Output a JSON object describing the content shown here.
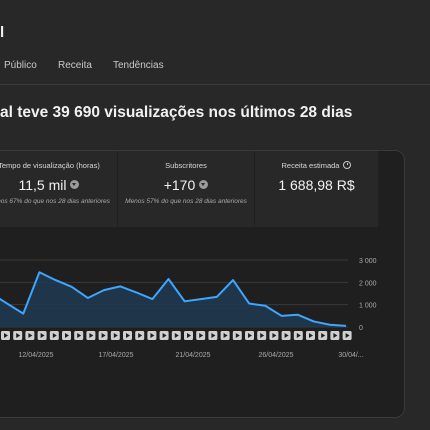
{
  "header": {
    "title_fragment": "l"
  },
  "tabs": [
    {
      "label": "Público"
    },
    {
      "label": "Receita"
    },
    {
      "label": "Tendências"
    }
  ],
  "headline": "al teve 39 690 visualizações nos últimos 28 dias",
  "metrics": [
    {
      "label": "Tempo de visualização (horas)",
      "value": "11,5 mil",
      "note": "Menos 67% do que nos 28 dias anteriores",
      "icon": "down-arrow-icon"
    },
    {
      "label": "Subscritores",
      "value": "+170",
      "note": "Menos 57% do que nos 28 dias anteriores",
      "icon": "down-arrow-icon"
    },
    {
      "label": "Receita estimada",
      "value": "1 688,98 R$",
      "note": "",
      "icon": "clock-icon"
    }
  ],
  "colors": {
    "line": "#3ea6ff",
    "fill": "#1e3a52",
    "background": "#282828",
    "card": "#1f1f1f"
  },
  "chart_data": {
    "type": "area",
    "x": [
      "09/04/2025",
      "10/04/2025",
      "11/04/2025",
      "12/04/2025",
      "13/04/2025",
      "14/04/2025",
      "15/04/2025",
      "16/04/2025",
      "17/04/2025",
      "18/04/2025",
      "19/04/2025",
      "20/04/2025",
      "21/04/2025",
      "22/04/2025",
      "23/04/2025",
      "24/04/2025",
      "25/04/2025",
      "26/04/2025",
      "27/04/2025",
      "28/04/2025",
      "29/04/2025",
      "30/04/2025",
      "01/05/2025"
    ],
    "values": [
      1500,
      1050,
      600,
      2450,
      2100,
      1800,
      1300,
      1650,
      1820,
      1550,
      1250,
      2150,
      1150,
      1250,
      1350,
      2100,
      1050,
      950,
      500,
      550,
      250,
      100,
      50
    ],
    "x_tick_labels": [
      "12/04/2025",
      "17/04/2025",
      "21/04/2025",
      "26/04/2025",
      "30/04/..."
    ],
    "y_tick_labels": [
      "3 000",
      "2 000",
      "1 000",
      "0"
    ],
    "ylim": [
      0,
      3000
    ],
    "grid": true
  }
}
